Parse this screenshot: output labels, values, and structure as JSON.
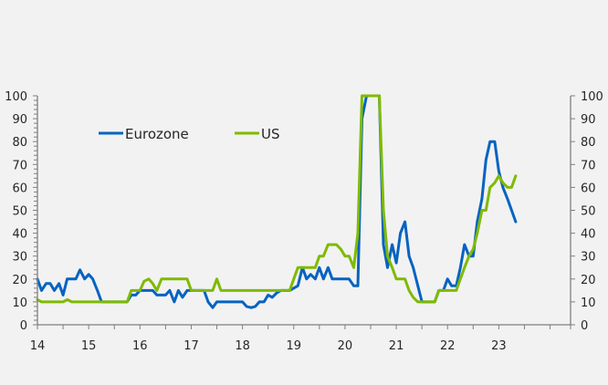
{
  "chart_data": {
    "type": "line",
    "title": "",
    "xlabel": "",
    "ylabel": "",
    "xlim": [
      14,
      24.4
    ],
    "ylim": [
      0,
      100
    ],
    "y_ticks": [
      0,
      10,
      20,
      30,
      40,
      50,
      60,
      70,
      80,
      90,
      100
    ],
    "y_tick_labels": [
      "0",
      "10",
      "20",
      "30",
      "40",
      "50",
      "60",
      "70",
      "80",
      "90",
      "100"
    ],
    "y2_tick_labels": [
      "0",
      "10",
      "20",
      "30",
      "40",
      "50",
      "60",
      "70",
      "80",
      "90",
      "100"
    ],
    "x_ticks": [
      14,
      15,
      16,
      17,
      18,
      19,
      20,
      21,
      22,
      23
    ],
    "x_tick_labels": [
      "14",
      "15",
      "16",
      "17",
      "18",
      "19",
      "20",
      "21",
      "22",
      "23"
    ],
    "grid": false,
    "legend": {
      "placement": "top-left",
      "entries": [
        "Eurozone",
        "US"
      ]
    },
    "series": [
      {
        "name": "Eurozone",
        "color": "#0563c1",
        "x": [
          14.0,
          14.08,
          14.17,
          14.25,
          14.33,
          14.42,
          14.5,
          14.58,
          14.67,
          14.75,
          14.83,
          14.92,
          15.0,
          15.08,
          15.17,
          15.25,
          15.33,
          15.42,
          15.5,
          15.58,
          15.67,
          15.75,
          15.83,
          15.92,
          16.0,
          16.08,
          16.17,
          16.25,
          16.33,
          16.42,
          16.5,
          16.58,
          16.67,
          16.75,
          16.83,
          16.92,
          17.0,
          17.08,
          17.17,
          17.25,
          17.33,
          17.42,
          17.5,
          17.58,
          17.67,
          17.75,
          17.83,
          17.92,
          18.0,
          18.08,
          18.17,
          18.25,
          18.33,
          18.42,
          18.5,
          18.58,
          18.67,
          18.75,
          18.83,
          18.92,
          19.0,
          19.08,
          19.17,
          19.25,
          19.33,
          19.42,
          19.5,
          19.58,
          19.67,
          19.75,
          19.83,
          19.92,
          20.0,
          20.08,
          20.17,
          20.25,
          20.33,
          20.42,
          20.5,
          20.58,
          20.67,
          20.75,
          20.83,
          20.92,
          21.0,
          21.08,
          21.17,
          21.25,
          21.33,
          21.42,
          21.5,
          21.58,
          21.67,
          21.75,
          21.83,
          21.92,
          22.0,
          22.08,
          22.17,
          22.25,
          22.33,
          22.42,
          22.5,
          22.58,
          22.67,
          22.75,
          22.83,
          22.92,
          23.0,
          23.08,
          23.17,
          23.25,
          23.33
        ],
        "values": [
          20,
          15,
          18,
          18,
          15,
          18,
          13,
          20,
          20,
          20,
          24,
          20,
          22,
          20,
          15,
          10,
          10,
          10,
          10,
          10,
          10,
          10,
          13,
          13,
          15,
          15,
          15,
          15,
          13,
          13,
          13,
          15,
          10,
          15,
          12,
          15,
          15,
          15,
          15,
          15,
          10,
          7.5,
          10,
          10,
          10,
          10,
          10,
          10,
          10,
          8,
          7.5,
          8,
          10,
          10,
          13,
          12,
          14,
          15,
          15,
          15,
          16,
          17,
          25,
          20,
          22,
          20,
          25,
          20,
          25,
          20,
          20,
          20,
          20,
          20,
          17,
          17,
          90,
          100,
          100,
          100,
          100,
          35,
          25,
          35,
          27,
          40,
          45,
          30,
          25,
          17,
          10,
          10,
          10,
          10,
          15,
          15,
          20,
          17,
          17,
          25,
          35,
          30,
          30,
          45,
          55,
          72,
          80,
          80,
          67,
          60,
          55,
          50,
          45
        ],
        "label_points_note": ""
      },
      {
        "name": "US",
        "color": "#7fba00",
        "x": [
          14.0,
          14.08,
          14.17,
          14.25,
          14.33,
          14.42,
          14.5,
          14.58,
          14.67,
          14.75,
          14.83,
          14.92,
          15.0,
          15.08,
          15.17,
          15.25,
          15.33,
          15.42,
          15.5,
          15.58,
          15.67,
          15.75,
          15.83,
          15.92,
          16.0,
          16.08,
          16.17,
          16.25,
          16.33,
          16.42,
          16.5,
          16.58,
          16.67,
          16.75,
          16.83,
          16.92,
          17.0,
          17.08,
          17.17,
          17.25,
          17.33,
          17.42,
          17.5,
          17.58,
          17.67,
          17.75,
          17.83,
          17.92,
          18.0,
          18.08,
          18.17,
          18.25,
          18.33,
          18.42,
          18.5,
          18.58,
          18.67,
          18.75,
          18.83,
          18.92,
          19.0,
          19.08,
          19.17,
          19.25,
          19.33,
          19.42,
          19.5,
          19.58,
          19.67,
          19.75,
          19.83,
          19.92,
          20.0,
          20.08,
          20.17,
          20.25,
          20.33,
          20.42,
          20.5,
          20.58,
          20.67,
          20.75,
          20.83,
          20.92,
          21.0,
          21.08,
          21.17,
          21.25,
          21.33,
          21.42,
          21.5,
          21.58,
          21.67,
          21.75,
          21.83,
          21.92,
          22.0,
          22.08,
          22.17,
          22.25,
          22.33,
          22.42,
          22.5,
          22.58,
          22.67,
          22.75,
          22.83,
          22.92,
          23.0,
          23.08,
          23.17,
          23.25,
          23.33
        ],
        "values": [
          11,
          10,
          10,
          10,
          10,
          10,
          10,
          11,
          10,
          10,
          10,
          10,
          10,
          10,
          10,
          10,
          10,
          10,
          10,
          10,
          10,
          10,
          15,
          15,
          15,
          19,
          20,
          18,
          15,
          20,
          20,
          20,
          20,
          20,
          20,
          20,
          15,
          15,
          15,
          15,
          15,
          15,
          20,
          15,
          15,
          15,
          15,
          15,
          15,
          15,
          15,
          15,
          15,
          15,
          15,
          15,
          15,
          15,
          15,
          15,
          20,
          25,
          25,
          25,
          25,
          25,
          30,
          30,
          35,
          35,
          35,
          33,
          30,
          30,
          25,
          40,
          100,
          100,
          100,
          100,
          100,
          50,
          30,
          25,
          20,
          20,
          20,
          15,
          12,
          10,
          10,
          10,
          10,
          10,
          15,
          15,
          15,
          15,
          15,
          20,
          25,
          30,
          33,
          40,
          50,
          50,
          60,
          62,
          65,
          62,
          60,
          60,
          65
        ],
        "label_points_note": ""
      }
    ]
  }
}
